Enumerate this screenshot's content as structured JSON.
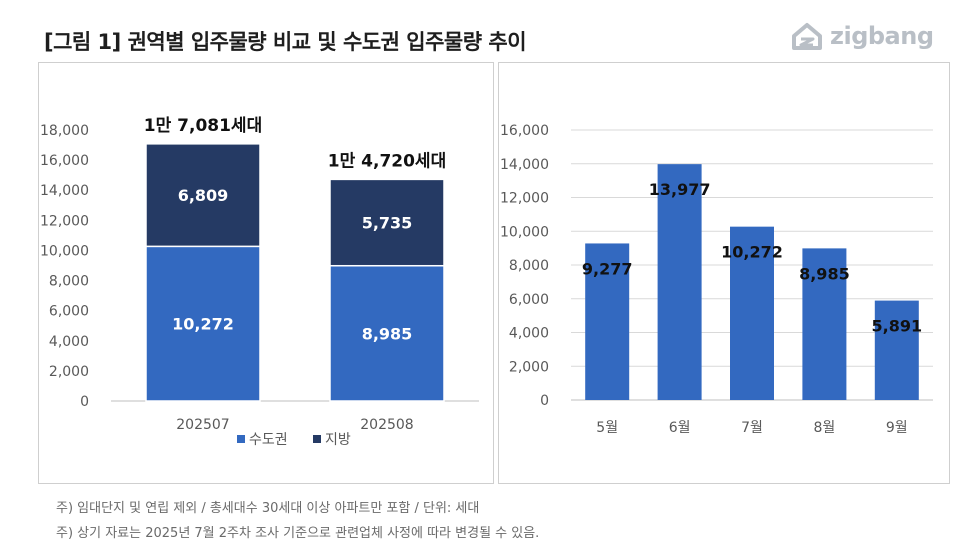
{
  "title": "[그림 1] 권역별 입주물량 비교 및 수도권 입주물량 추이",
  "logo": {
    "text": "zigbang",
    "icon": "zigbang-house-icon",
    "color": "#b9bfc6"
  },
  "colors": {
    "capital": "#3369c0",
    "provincial": "#253a64",
    "bar": "#3369c0",
    "grid": "#d9d9d9",
    "axis_text": "#595959"
  },
  "chart_data": [
    {
      "type": "bar",
      "stacked": true,
      "categories": [
        "202507",
        "202508"
      ],
      "series": [
        {
          "name": "수도권",
          "values": [
            10272,
            8985
          ],
          "labels": [
            "10,272",
            "8,985"
          ]
        },
        {
          "name": "지방",
          "values": [
            6809,
            5735
          ],
          "labels": [
            "6,809",
            "5,735"
          ]
        }
      ],
      "totals_labels": [
        "1만 7,081세대",
        "1만 4,720세대"
      ],
      "yticks": [
        "0",
        "2,000",
        "4,000",
        "6,000",
        "8,000",
        "10,000",
        "12,000",
        "14,000",
        "16,000",
        "18,000"
      ],
      "ylim": [
        0,
        18000
      ],
      "grid": false,
      "legend": "bottom"
    },
    {
      "type": "bar",
      "categories": [
        "5월",
        "6월",
        "7월",
        "8월",
        "9월"
      ],
      "values": [
        9277,
        13977,
        10272,
        8985,
        5891
      ],
      "labels": [
        "9,277",
        "13,977",
        "10,272",
        "8,985",
        "5,891"
      ],
      "yticks": [
        "0",
        "2,000",
        "4,000",
        "6,000",
        "8,000",
        "10,000",
        "12,000",
        "14,000",
        "16,000"
      ],
      "ylim": [
        0,
        16000
      ],
      "grid": true
    }
  ],
  "notes": [
    "주) 임대단지 및 연립 제외 / 총세대수 30세대 이상 아파트만 포함 / 단위: 세대",
    "주) 상기 자료는 2025년 7월 2주차 조사 기준으로 관련업체 사정에 따라 변경될 수 있음."
  ]
}
